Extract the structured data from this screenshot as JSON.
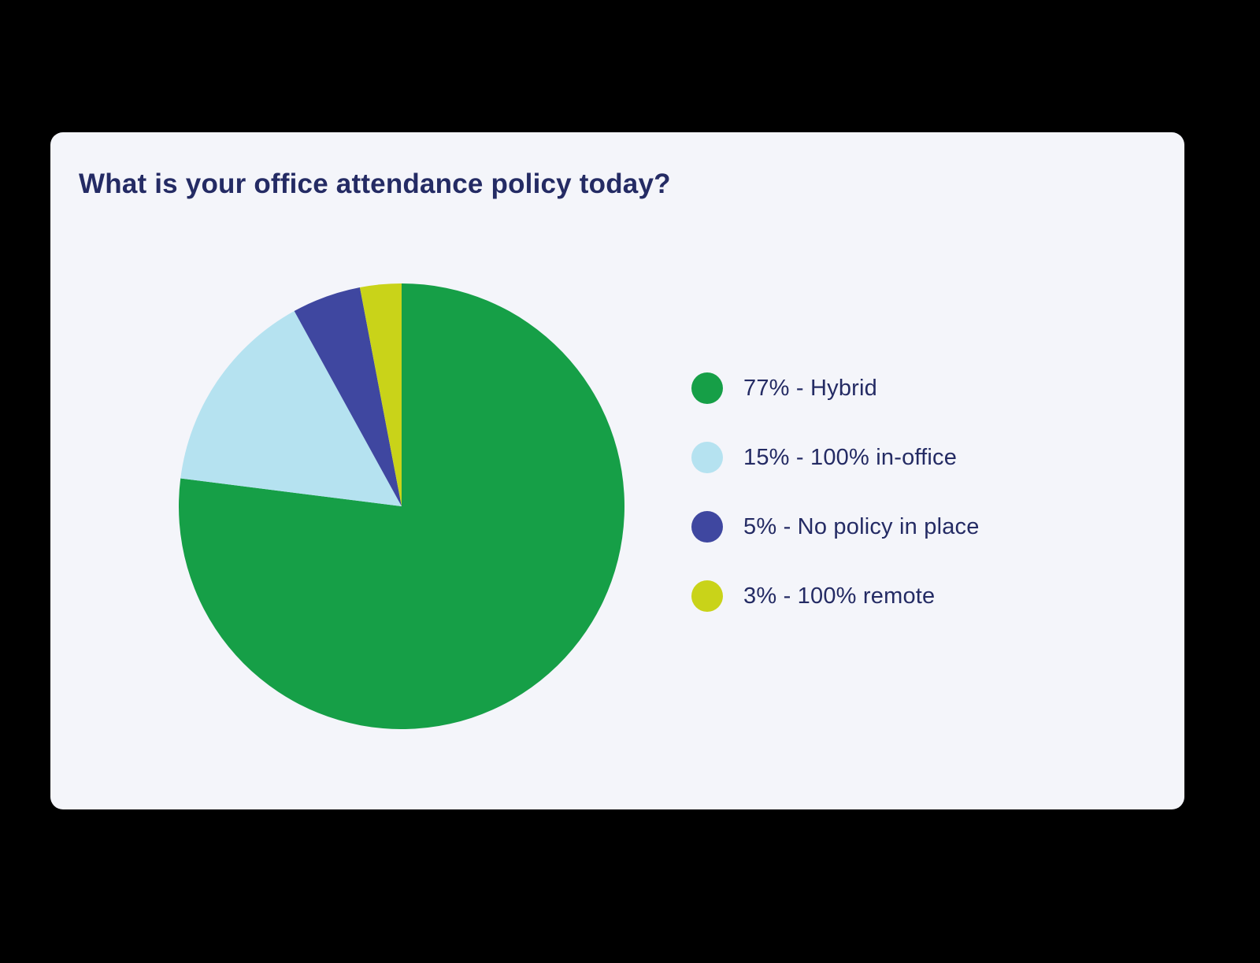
{
  "card": {
    "title": "What is your office attendance policy today?"
  },
  "chart_data": {
    "type": "pie",
    "title": "What is your office attendance policy today?",
    "direction": "clockwise",
    "start_angle_deg": 0,
    "legend_position": "right",
    "slices": [
      {
        "label": "Hybrid",
        "value": 77,
        "color": "#169F47",
        "legend_label": "77% - Hybrid"
      },
      {
        "label": "100% in-office",
        "value": 15,
        "color": "#B5E2F0",
        "legend_label": "15% - 100% in-office"
      },
      {
        "label": "No policy in place",
        "value": 5,
        "color": "#3F47A0",
        "legend_label": "5% - No policy in place"
      },
      {
        "label": "100% remote",
        "value": 3,
        "color": "#C9D319",
        "legend_label": "3% - 100% remote"
      }
    ]
  },
  "colors": {
    "background": "#000000",
    "card_bg": "#F4F5FA",
    "text": "#242B64"
  }
}
